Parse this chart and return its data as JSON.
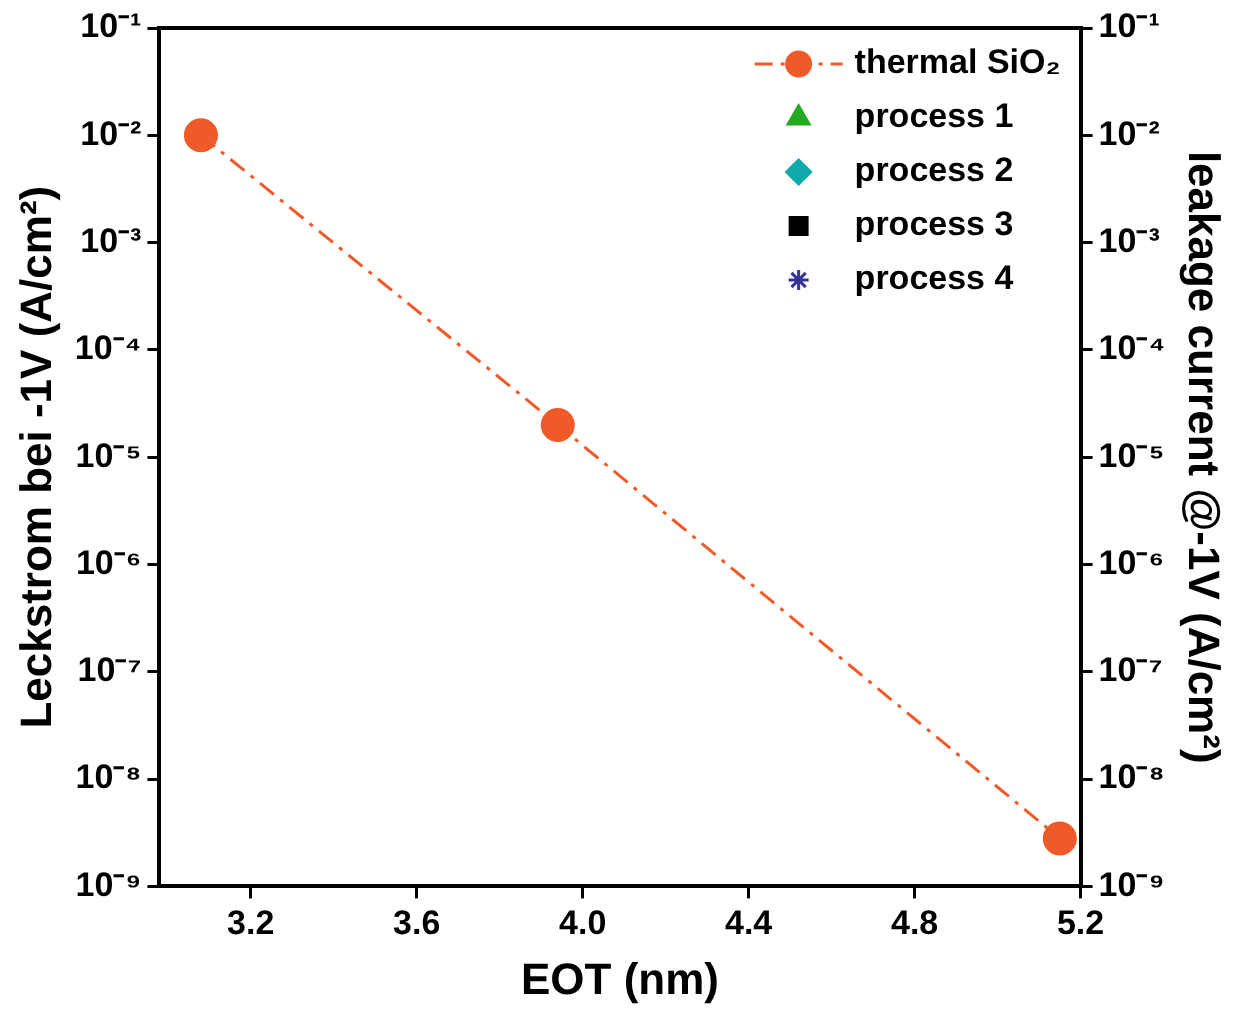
{
  "chart_data": {
    "type": "line",
    "xlabel": "EOT (nm)",
    "ylabel": "Leckstrom bei -1V (A/cm²)",
    "y2label": "leakage current @-1V (A/cm²)",
    "xlim": [
      2.98,
      5.2
    ],
    "xticks": [
      3.2,
      3.6,
      {
        "value": 4,
        "label": "4.0"
      },
      4.4,
      4.8,
      5.2
    ],
    "log": "y",
    "ylim": [
      1e-09,
      0.1
    ],
    "yticks": [
      {
        "value": 1e-09,
        "label": "10⁻⁹"
      },
      {
        "value": 1e-08,
        "label": "10⁻⁸"
      },
      {
        "value": 1e-07,
        "label": "10⁻⁷"
      },
      {
        "value": 1e-06,
        "label": "10⁻⁶"
      },
      {
        "value": 1e-05,
        "label": "10⁻⁵"
      },
      {
        "value": 0.0001,
        "label": "10⁻⁴"
      },
      {
        "value": 0.001,
        "label": "10⁻³"
      },
      {
        "value": 0.01,
        "label": "10⁻²"
      },
      {
        "value": 0.1,
        "label": "10⁻¹"
      }
    ],
    "grid": false,
    "legend": "top right",
    "line_style": "dashed",
    "series": [
      {
        "name": "thermal SiO₂",
        "type": "line",
        "marker": "circle",
        "color": "#f05a28",
        "x": [
          3.08,
          3.94,
          5.15
        ],
        "values": [
          0.01,
          2e-05,
          2.8e-09
        ]
      },
      {
        "name": "process 1",
        "type": "scatter",
        "marker": "triangle",
        "color": "#22aa22"
      },
      {
        "name": "process 2",
        "type": "scatter",
        "marker": "diamond",
        "color": "#11aaaa"
      },
      {
        "name": "process 3",
        "type": "scatter",
        "marker": "square",
        "color": "#000000"
      },
      {
        "name": "process 4",
        "type": "scatter",
        "marker": "star",
        "color": "#333399"
      }
    ]
  }
}
